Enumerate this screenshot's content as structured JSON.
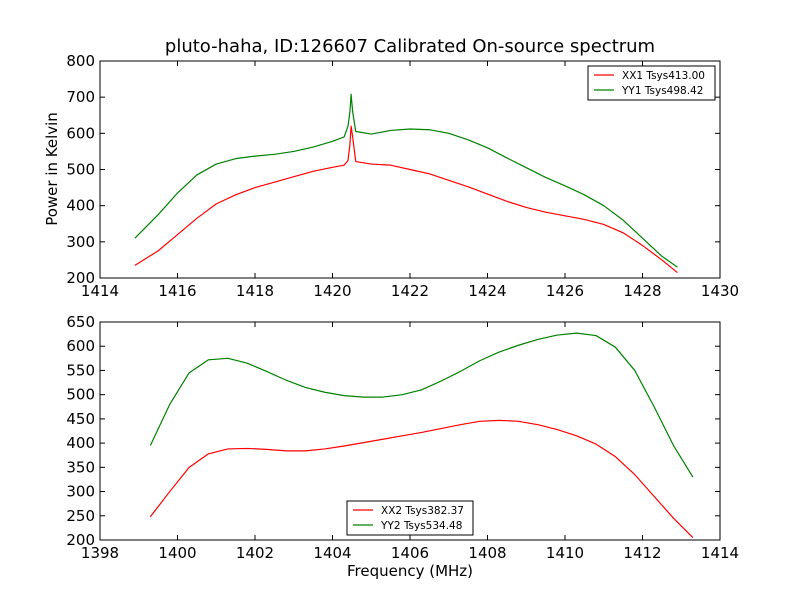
{
  "chart_data": [
    {
      "type": "line",
      "title": "pluto-haha, ID:126607 Calibrated On-source spectrum",
      "xlabel": "",
      "ylabel": "Power in Kelvin",
      "xlim": [
        1414,
        1430
      ],
      "ylim": [
        200,
        800
      ],
      "xticks": [
        "1414",
        "1416",
        "1418",
        "1420",
        "1422",
        "1424",
        "1426",
        "1428",
        "1430"
      ],
      "yticks": [
        "200",
        "300",
        "400",
        "500",
        "600",
        "700",
        "800"
      ],
      "legend_position": "top-right",
      "series": [
        {
          "name": "XX1 Tsys413.00",
          "color": "#ff0000",
          "points": [
            [
              1414.9,
              235
            ],
            [
              1415.5,
              275
            ],
            [
              1416.0,
              320
            ],
            [
              1416.5,
              365
            ],
            [
              1417.0,
              405
            ],
            [
              1417.5,
              430
            ],
            [
              1418.0,
              450
            ],
            [
              1418.5,
              465
            ],
            [
              1419.0,
              480
            ],
            [
              1419.5,
              495
            ],
            [
              1420.0,
              506
            ],
            [
              1420.3,
              512
            ],
            [
              1420.4,
              525
            ],
            [
              1420.45,
              570
            ],
            [
              1420.48,
              620
            ],
            [
              1420.52,
              590
            ],
            [
              1420.6,
              522
            ],
            [
              1421.0,
              515
            ],
            [
              1421.5,
              512
            ],
            [
              1422.0,
              500
            ],
            [
              1422.5,
              488
            ],
            [
              1423.0,
              470
            ],
            [
              1423.5,
              452
            ],
            [
              1424.0,
              432
            ],
            [
              1424.5,
              412
            ],
            [
              1425.0,
              395
            ],
            [
              1425.5,
              382
            ],
            [
              1426.0,
              372
            ],
            [
              1426.5,
              362
            ],
            [
              1427.0,
              348
            ],
            [
              1427.5,
              325
            ],
            [
              1428.0,
              290
            ],
            [
              1428.5,
              250
            ],
            [
              1428.9,
              215
            ]
          ]
        },
        {
          "name": "YY1 Tsys498.42",
          "color": "#008000",
          "points": [
            [
              1414.9,
              310
            ],
            [
              1415.5,
              375
            ],
            [
              1416.0,
              435
            ],
            [
              1416.5,
              485
            ],
            [
              1417.0,
              515
            ],
            [
              1417.5,
              530
            ],
            [
              1418.0,
              537
            ],
            [
              1418.5,
              542
            ],
            [
              1419.0,
              550
            ],
            [
              1419.5,
              562
            ],
            [
              1420.0,
              578
            ],
            [
              1420.3,
              590
            ],
            [
              1420.4,
              620
            ],
            [
              1420.45,
              660
            ],
            [
              1420.48,
              708
            ],
            [
              1420.52,
              660
            ],
            [
              1420.6,
              605
            ],
            [
              1421.0,
              598
            ],
            [
              1421.5,
              608
            ],
            [
              1422.0,
              612
            ],
            [
              1422.5,
              610
            ],
            [
              1423.0,
              600
            ],
            [
              1423.5,
              582
            ],
            [
              1424.0,
              560
            ],
            [
              1424.5,
              532
            ],
            [
              1425.0,
              505
            ],
            [
              1425.5,
              478
            ],
            [
              1426.0,
              455
            ],
            [
              1426.5,
              430
            ],
            [
              1427.0,
              400
            ],
            [
              1427.5,
              360
            ],
            [
              1428.0,
              310
            ],
            [
              1428.5,
              260
            ],
            [
              1428.9,
              230
            ]
          ]
        }
      ]
    },
    {
      "type": "line",
      "title": "",
      "xlabel": "Frequency (MHz)",
      "ylabel": "",
      "xlim": [
        1398,
        1414
      ],
      "ylim": [
        200,
        650
      ],
      "xticks": [
        "1398",
        "1400",
        "1402",
        "1404",
        "1406",
        "1408",
        "1410",
        "1412",
        "1414"
      ],
      "yticks": [
        "200",
        "250",
        "300",
        "350",
        "400",
        "450",
        "500",
        "550",
        "600",
        "650"
      ],
      "legend_position": "bottom-center",
      "series": [
        {
          "name": "XX2 Tsys382.37",
          "color": "#ff0000",
          "points": [
            [
              1399.3,
              248
            ],
            [
              1399.8,
              300
            ],
            [
              1400.3,
              350
            ],
            [
              1400.8,
              378
            ],
            [
              1401.3,
              388
            ],
            [
              1401.8,
              389
            ],
            [
              1402.3,
              387
            ],
            [
              1402.8,
              384
            ],
            [
              1403.3,
              384
            ],
            [
              1403.8,
              388
            ],
            [
              1404.3,
              394
            ],
            [
              1404.8,
              401
            ],
            [
              1405.3,
              408
            ],
            [
              1405.8,
              415
            ],
            [
              1406.3,
              422
            ],
            [
              1406.8,
              430
            ],
            [
              1407.3,
              438
            ],
            [
              1407.8,
              445
            ],
            [
              1408.3,
              447
            ],
            [
              1408.8,
              445
            ],
            [
              1409.3,
              438
            ],
            [
              1409.8,
              428
            ],
            [
              1410.3,
              415
            ],
            [
              1410.8,
              398
            ],
            [
              1411.3,
              372
            ],
            [
              1411.8,
              335
            ],
            [
              1412.3,
              290
            ],
            [
              1412.8,
              245
            ],
            [
              1413.3,
              205
            ]
          ]
        },
        {
          "name": "YY2 Tsys534.48",
          "color": "#008000",
          "points": [
            [
              1399.3,
              395
            ],
            [
              1399.8,
              480
            ],
            [
              1400.3,
              545
            ],
            [
              1400.8,
              572
            ],
            [
              1401.3,
              575
            ],
            [
              1401.8,
              565
            ],
            [
              1402.3,
              548
            ],
            [
              1402.8,
              530
            ],
            [
              1403.3,
              515
            ],
            [
              1403.8,
              505
            ],
            [
              1404.3,
              498
            ],
            [
              1404.8,
              495
            ],
            [
              1405.3,
              495
            ],
            [
              1405.8,
              500
            ],
            [
              1406.3,
              510
            ],
            [
              1406.8,
              528
            ],
            [
              1407.3,
              548
            ],
            [
              1407.8,
              570
            ],
            [
              1408.3,
              588
            ],
            [
              1408.8,
              602
            ],
            [
              1409.3,
              614
            ],
            [
              1409.8,
              623
            ],
            [
              1410.3,
              627
            ],
            [
              1410.8,
              622
            ],
            [
              1411.3,
              598
            ],
            [
              1411.8,
              550
            ],
            [
              1412.3,
              475
            ],
            [
              1412.8,
              395
            ],
            [
              1413.3,
              330
            ]
          ]
        }
      ]
    }
  ]
}
